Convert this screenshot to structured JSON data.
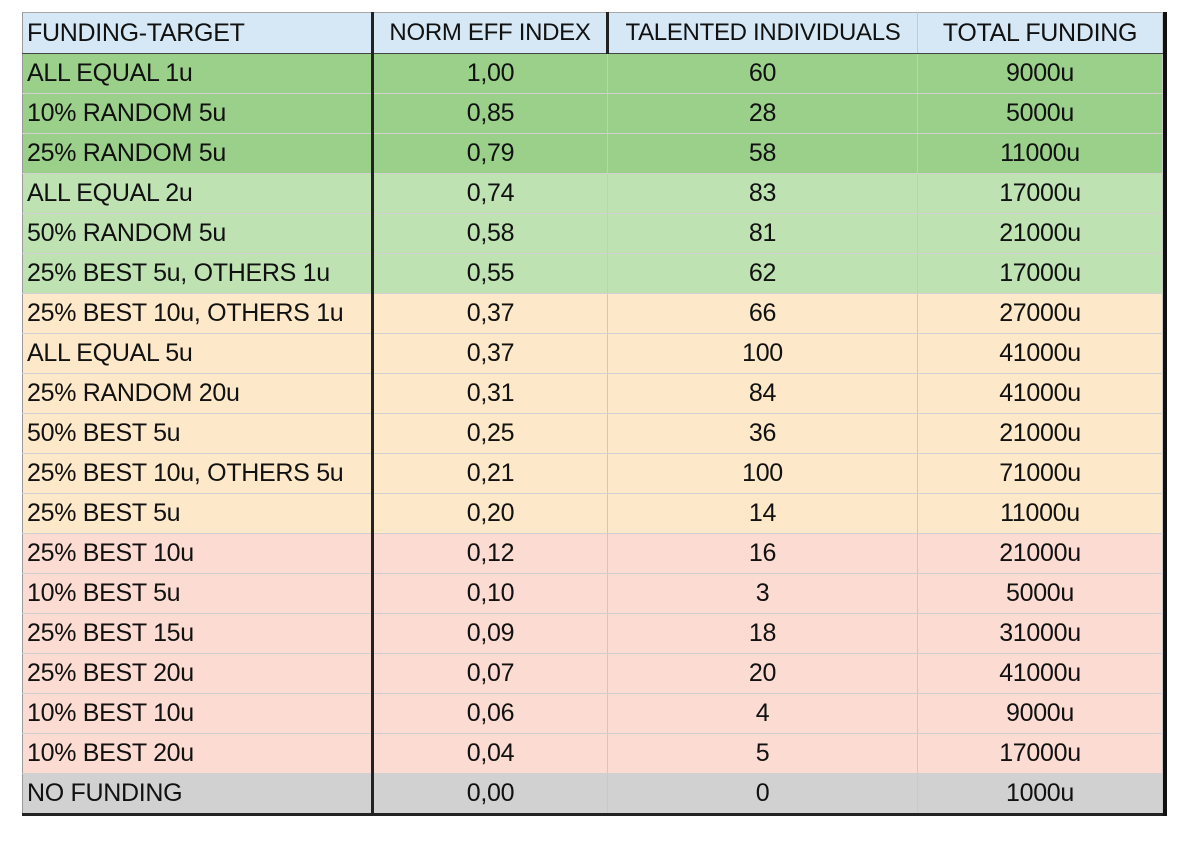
{
  "chart_data": {
    "type": "table",
    "columns": [
      "FUNDING-TARGET",
      "NORM EFF INDEX",
      "TALENTED INDIVIDUALS",
      "TOTAL FUNDING"
    ],
    "rows": [
      {
        "target": "ALL EQUAL  1u",
        "norm_eff_index": "1,00",
        "talented": "60",
        "total_funding": "9000u",
        "color": "#9bd08b"
      },
      {
        "target": "10% RANDOM 5u",
        "norm_eff_index": "0,85",
        "talented": "28",
        "total_funding": "5000u",
        "color": "#9bd08b"
      },
      {
        "target": "25% RANDOM 5u",
        "norm_eff_index": "0,79",
        "talented": "58",
        "total_funding": "11000u",
        "color": "#9bd08b"
      },
      {
        "target": "ALL EQUAL  2u",
        "norm_eff_index": "0,74",
        "talented": "83",
        "total_funding": "17000u",
        "color": "#bfe2b3"
      },
      {
        "target": "50% RANDOM 5u",
        "norm_eff_index": "0,58",
        "talented": "81",
        "total_funding": "21000u",
        "color": "#bfe2b3"
      },
      {
        "target": "25% BEST 5u, OTHERS 1u",
        "norm_eff_index": "0,55",
        "talented": "62",
        "total_funding": "17000u",
        "color": "#bfe2b3"
      },
      {
        "target": "25% BEST 10u, OTHERS 1u",
        "norm_eff_index": "0,37",
        "talented": "66",
        "total_funding": "27000u",
        "color": "#fde9c9"
      },
      {
        "target": "ALL EQUAL  5u",
        "norm_eff_index": "0,37",
        "talented": "100",
        "total_funding": "41000u",
        "color": "#fde9c9"
      },
      {
        "target": "25% RANDOM 20u",
        "norm_eff_index": "0,31",
        "talented": "84",
        "total_funding": "41000u",
        "color": "#fde9c9"
      },
      {
        "target": "50% BEST  5u",
        "norm_eff_index": "0,25",
        "talented": "36",
        "total_funding": "21000u",
        "color": "#fde9c9"
      },
      {
        "target": "25% BEST 10u, OTHERS 5u",
        "norm_eff_index": "0,21",
        "talented": "100",
        "total_funding": "71000u",
        "color": "#fde9c9"
      },
      {
        "target": "25% BEST  5u",
        "norm_eff_index": "0,20",
        "talented": "14",
        "total_funding": "11000u",
        "color": "#fde9c9"
      },
      {
        "target": "25% BEST  10u",
        "norm_eff_index": "0,12",
        "talented": "16",
        "total_funding": "21000u",
        "color": "#fcdcd2"
      },
      {
        "target": "10% BEST  5u",
        "norm_eff_index": "0,10",
        "talented": "3",
        "total_funding": "5000u",
        "color": "#fcdcd2"
      },
      {
        "target": "25% BEST  15u",
        "norm_eff_index": "0,09",
        "talented": "18",
        "total_funding": "31000u",
        "color": "#fcdcd2"
      },
      {
        "target": "25% BEST  20u",
        "norm_eff_index": "0,07",
        "talented": "20",
        "total_funding": "41000u",
        "color": "#fcdcd2"
      },
      {
        "target": "10% BEST  10u",
        "norm_eff_index": "0,06",
        "talented": "4",
        "total_funding": "9000u",
        "color": "#fcdcd2"
      },
      {
        "target": "10% BEST  20u",
        "norm_eff_index": "0,04",
        "talented": "5",
        "total_funding": "17000u",
        "color": "#fcdcd2"
      },
      {
        "target": "NO FUNDING",
        "norm_eff_index": "0,00",
        "talented": "0",
        "total_funding": "1000u",
        "color": "#d1d1d1"
      }
    ],
    "header_color": "#d6e8f5",
    "title": "",
    "xlabel": "",
    "ylabel": ""
  }
}
